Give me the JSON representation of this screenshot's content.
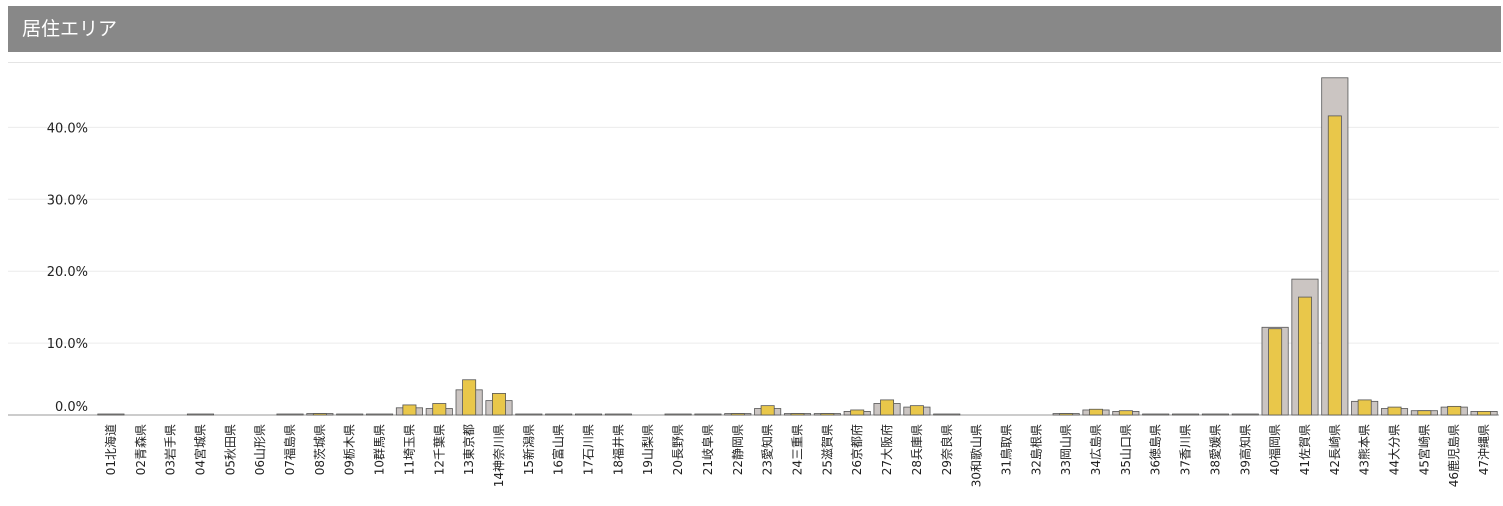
{
  "panel": {
    "title": "居住エリア"
  },
  "colors": {
    "header_bg": "#888888",
    "series_total": "#cbc5c2",
    "series_highlight": "#e9c74a",
    "bar_stroke": "#555555"
  },
  "chart_data": {
    "type": "bar",
    "y_tick_labels": [
      "0.0%",
      "10.0%",
      "20.0%",
      "30.0%",
      "40.0%"
    ],
    "y_ticks": [
      0,
      10,
      20,
      30,
      40
    ],
    "ylim": [
      0,
      47
    ],
    "grid": true,
    "categories": [
      "01北海道",
      "02青森県",
      "03岩手県",
      "04宮城県",
      "05秋田県",
      "06山形県",
      "07福島県",
      "08茨城県",
      "09栃木県",
      "10群馬県",
      "11埼玉県",
      "12千葉県",
      "13東京都",
      "14神奈川県",
      "15新潟県",
      "16富山県",
      "17石川県",
      "18福井県",
      "19山梨県",
      "20長野県",
      "21岐阜県",
      "22静岡県",
      "23愛知県",
      "24三重県",
      "25滋賀県",
      "26京都府",
      "27大阪府",
      "28兵庫県",
      "29奈良県",
      "30和歌山県",
      "31鳥取県",
      "32島根県",
      "33岡山県",
      "34広島県",
      "35山口県",
      "36徳島県",
      "37香川県",
      "38愛媛県",
      "39高知県",
      "40福岡県",
      "41佐賀県",
      "42長崎県",
      "43熊本県",
      "44大分県",
      "45宮崎県",
      "46鹿児島県",
      "47沖縄県"
    ],
    "series": [
      {
        "values": [
          0.1,
          0,
          0,
          0.1,
          0,
          0,
          0.1,
          0.2,
          0.1,
          0.1,
          1.0,
          0.9,
          3.5,
          2.0,
          0.1,
          0.1,
          0.1,
          0.1,
          0,
          0.1,
          0.1,
          0.2,
          0.9,
          0.2,
          0.2,
          0.5,
          1.6,
          1.1,
          0.1,
          0,
          0,
          0,
          0.2,
          0.7,
          0.5,
          0.1,
          0.1,
          0.1,
          0.1,
          12.2,
          18.9,
          46.9,
          1.9,
          0.9,
          0.6,
          1.1,
          0.5
        ]
      },
      {
        "values": [
          0,
          0,
          0,
          0,
          0,
          0,
          0,
          0.2,
          0,
          0,
          1.4,
          1.6,
          4.9,
          3.0,
          0,
          0,
          0,
          0,
          0,
          0,
          0,
          0.2,
          1.3,
          0.2,
          0.2,
          0.7,
          2.1,
          1.3,
          0,
          0,
          0,
          0,
          0.2,
          0.8,
          0.6,
          0,
          0,
          0,
          0,
          12.0,
          16.4,
          41.6,
          2.1,
          1.1,
          0.6,
          1.2,
          0.5
        ]
      }
    ]
  }
}
